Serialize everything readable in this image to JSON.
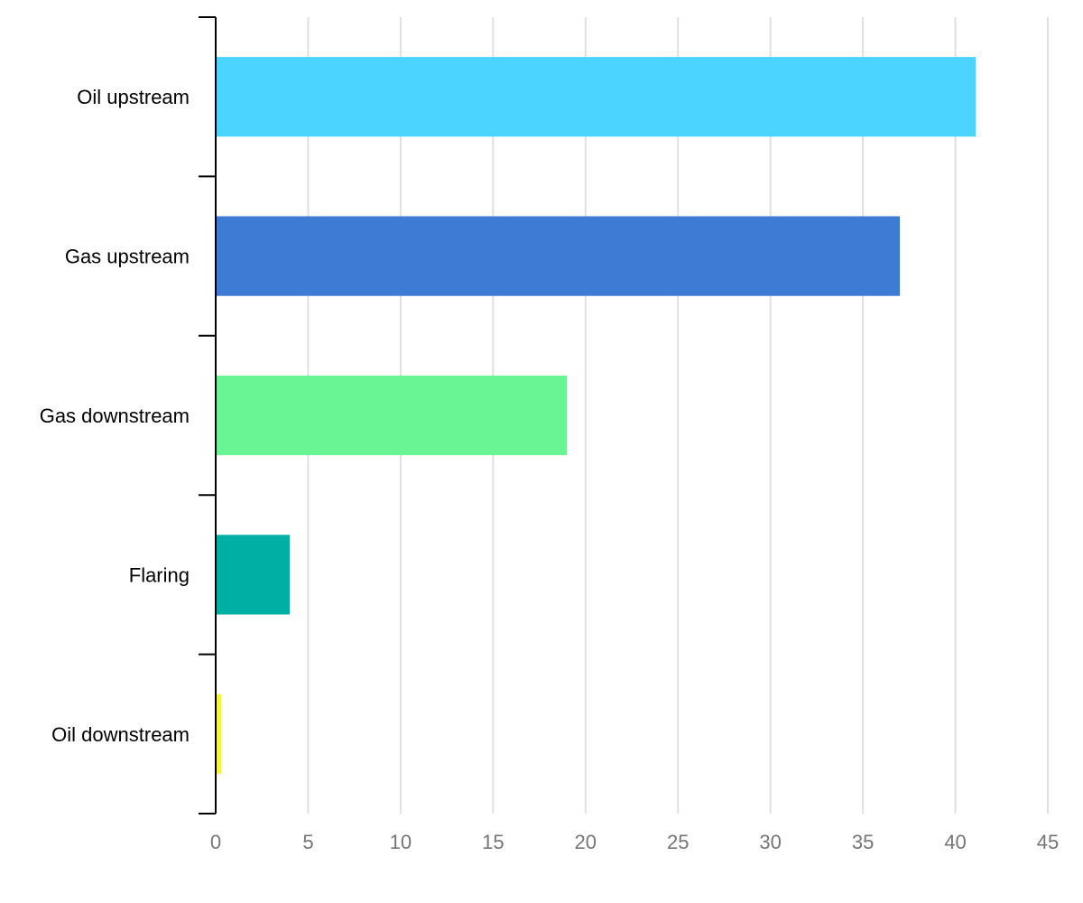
{
  "chart_data": {
    "type": "bar",
    "orientation": "horizontal",
    "categories": [
      "Oil upstream",
      "Gas upstream",
      "Gas downstream",
      "Flaring",
      "Oil downstream"
    ],
    "values": [
      41.1,
      37.0,
      19.0,
      4.0,
      0.3
    ],
    "colors": [
      "#4ad4ff",
      "#3d7bd4",
      "#69f594",
      "#00afa3",
      "#f5f542"
    ],
    "xlim": [
      0,
      45
    ],
    "x_ticks": [
      "0",
      "5",
      "10",
      "15",
      "20",
      "25",
      "30",
      "35",
      "40",
      "45"
    ],
    "grid": "vertical",
    "legend": "none",
    "title": "",
    "xlabel": "",
    "ylabel": ""
  }
}
